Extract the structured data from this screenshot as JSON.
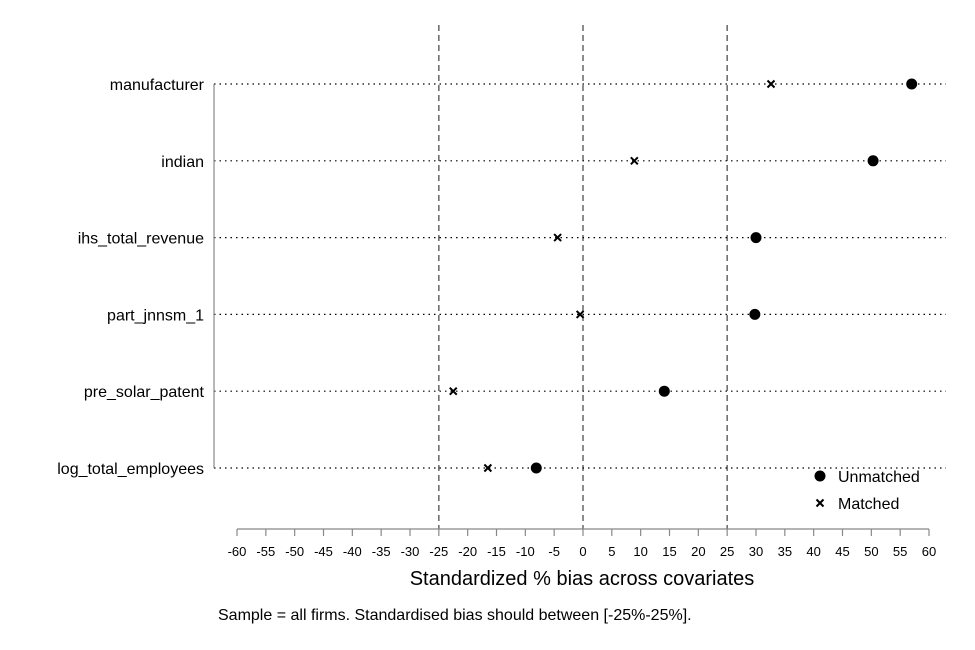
{
  "chart_data": {
    "type": "scatter",
    "categories": [
      "manufacturer",
      "indian",
      "ihs_total_revenue",
      "part_jnnsm_1",
      "pre_solar_patent",
      "log_total_employees"
    ],
    "series": [
      {
        "name": "Unmatched",
        "marker": "filled-circle",
        "values": [
          57,
          50.3,
          30,
          29.8,
          14.1,
          -8.1
        ]
      },
      {
        "name": "Matched",
        "marker": "x",
        "values": [
          32.6,
          8.9,
          -4.4,
          -0.5,
          -22.5,
          -16.5
        ]
      }
    ],
    "xlabel": "Standardized % bias across covariates",
    "xlim": [
      -60,
      60
    ],
    "xticks": [
      -60,
      -55,
      -50,
      -45,
      -40,
      -35,
      -30,
      -25,
      -20,
      -15,
      -10,
      -5,
      0,
      5,
      10,
      15,
      20,
      25,
      30,
      35,
      40,
      45,
      50,
      55,
      60
    ],
    "reference_lines": [
      -25,
      0,
      25
    ],
    "grid": "dotted horizontal per category",
    "legend_position": "bottom-right",
    "note": "Sample = all firms. Standardised bias should between [-25%-25%].",
    "colors": {
      "markers": "#000000",
      "reference_lines": "#666666",
      "grid": "#000000"
    }
  }
}
